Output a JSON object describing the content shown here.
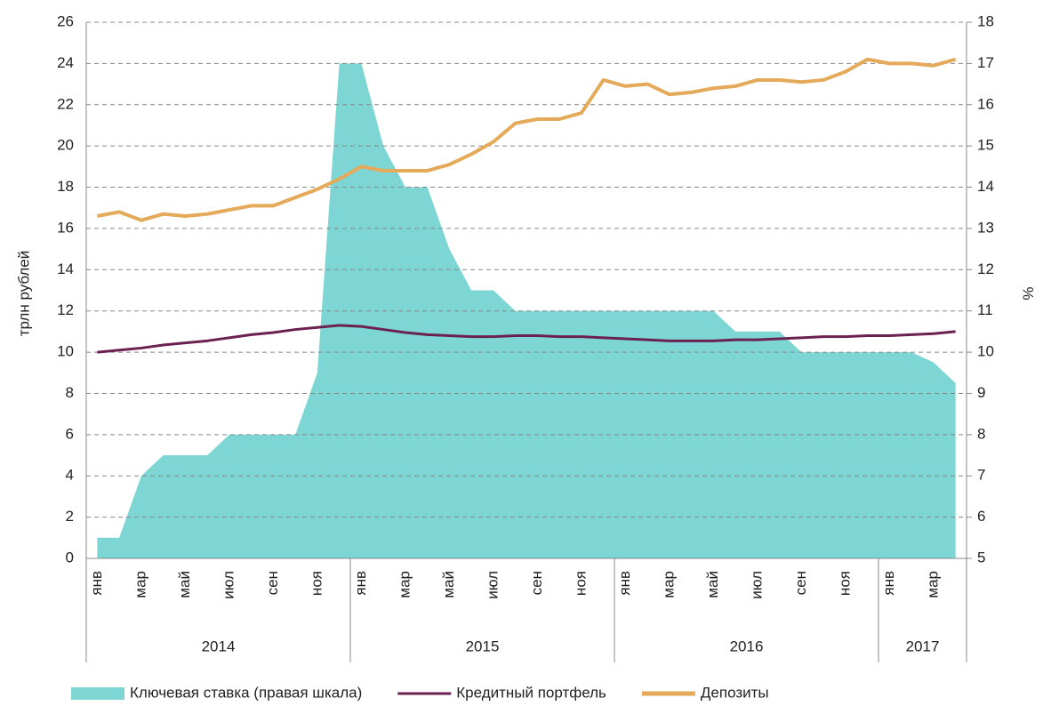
{
  "chart_data": {
    "type": "line",
    "y_label": "трлн рублей",
    "y2_label": "%",
    "categories": [
      "янв",
      null,
      "мар",
      null,
      "май",
      null,
      "июл",
      null,
      "сен",
      null,
      "ноя",
      null,
      "янв",
      null,
      "мар",
      null,
      "май",
      null,
      "июл",
      null,
      "сен",
      null,
      "ноя",
      null,
      "янв",
      null,
      "мар",
      null,
      "май",
      null,
      "июл",
      null,
      "сен",
      null,
      "ноя",
      null,
      "янв",
      null,
      "мар",
      null
    ],
    "groups": [
      "2014",
      "2015",
      "2016",
      "2017"
    ],
    "ylim": [
      0,
      26
    ],
    "yticks": [
      0,
      2,
      4,
      6,
      8,
      10,
      12,
      14,
      16,
      18,
      20,
      22,
      24,
      26
    ],
    "y2lim": [
      5,
      18
    ],
    "y2ticks": [
      5,
      6,
      7,
      8,
      9,
      10,
      11,
      12,
      13,
      14,
      15,
      16,
      17,
      18
    ],
    "grid": true,
    "series": [
      {
        "name": "Ключевая ставка (правая шкала)",
        "type": "area",
        "axis": "y2",
        "color": "#7dd6d3",
        "values": [
          5.5,
          5.5,
          7,
          7.5,
          7.5,
          7.5,
          8,
          8,
          8,
          8,
          9.5,
          17,
          17,
          15,
          14,
          14,
          12.5,
          11.5,
          11.5,
          11,
          11,
          11,
          11,
          11,
          11,
          11,
          11,
          11,
          11,
          10.5,
          10.5,
          10.5,
          10,
          10,
          10,
          10,
          10,
          10,
          9.75,
          9.25
        ]
      },
      {
        "name": "Кредитный портфель",
        "type": "line",
        "color": "#6b2150",
        "values": [
          10.0,
          10.1,
          10.2,
          10.35,
          10.45,
          10.55,
          10.7,
          10.85,
          10.95,
          11.1,
          11.2,
          11.3,
          11.25,
          11.1,
          10.95,
          10.85,
          10.8,
          10.75,
          10.75,
          10.8,
          10.8,
          10.75,
          10.75,
          10.7,
          10.65,
          10.6,
          10.55,
          10.55,
          10.55,
          10.6,
          10.6,
          10.65,
          10.7,
          10.75,
          10.75,
          10.8,
          10.8,
          10.85,
          10.9,
          11.0
        ]
      },
      {
        "name": "Депозиты",
        "type": "line",
        "color": "#e5a95a",
        "values": [
          16.6,
          16.8,
          16.4,
          16.7,
          16.6,
          16.7,
          16.9,
          17.1,
          17.1,
          17.5,
          17.9,
          18.4,
          19.0,
          18.8,
          18.8,
          18.8,
          19.1,
          19.6,
          20.2,
          21.1,
          21.3,
          21.3,
          21.6,
          23.2,
          22.9,
          23.0,
          22.5,
          22.6,
          22.8,
          22.9,
          23.2,
          23.2,
          23.1,
          23.2,
          23.6,
          24.2,
          24.0,
          24.0,
          23.9,
          24.2
        ]
      }
    ]
  }
}
